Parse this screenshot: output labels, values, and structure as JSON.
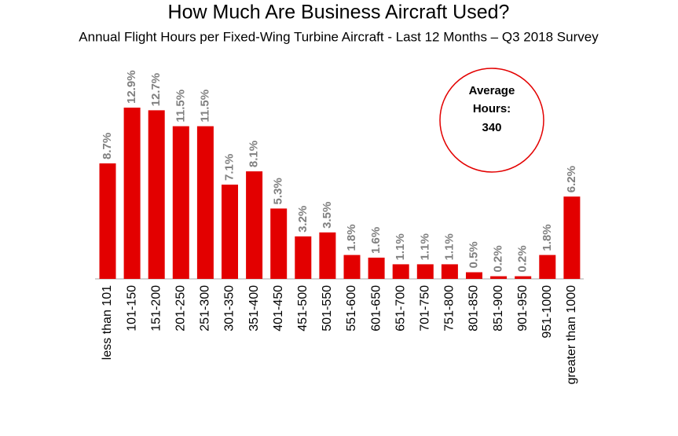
{
  "chart_data": {
    "type": "bar",
    "title": "How Much Are Business Aircraft Used?",
    "subtitle": "Annual Flight Hours per Fixed-Wing Turbine Aircraft - Last 12 Months – Q3 2018 Survey",
    "categories": [
      "less than 101",
      "101-150",
      "151-200",
      "201-250",
      "251-300",
      "301-350",
      "351-400",
      "401-450",
      "451-500",
      "501-550",
      "551-600",
      "601-650",
      "651-700",
      "701-750",
      "751-800",
      "801-850",
      "851-900",
      "901-950",
      "951-1000",
      "greater than 1000"
    ],
    "values": [
      8.7,
      12.9,
      12.7,
      11.5,
      11.5,
      7.1,
      8.1,
      5.3,
      3.2,
      3.5,
      1.8,
      1.6,
      1.1,
      1.1,
      1.1,
      0.5,
      0.2,
      0.2,
      1.8,
      6.2
    ],
    "value_labels": [
      "8.7%",
      "12.9%",
      "12.7%",
      "11.5%",
      "11.5%",
      "7.1%",
      "8.1%",
      "5.3%",
      "3.2%",
      "3.5%",
      "1.8%",
      "1.6%",
      "1.1%",
      "1.1%",
      "1.1%",
      "0.5%",
      "0.2%",
      "0.2%",
      "1.8%",
      "6.2%"
    ],
    "color": "#e30000",
    "annotation": {
      "lines": [
        "Average",
        "Hours:"
      ],
      "value": 340
    }
  }
}
